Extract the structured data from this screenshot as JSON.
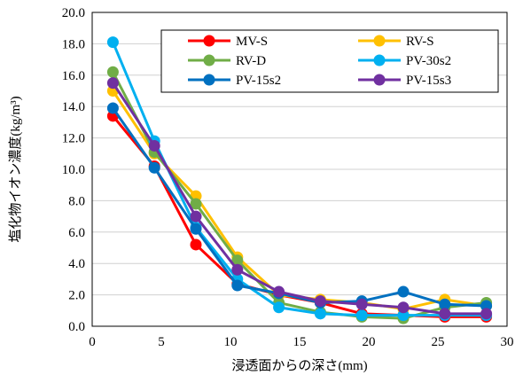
{
  "chart_data": {
    "type": "line",
    "title": "",
    "xlabel": "浸透面からの深さ(mm)",
    "ylabel": "塩化物イオン濃度(kg/m³)",
    "xlim": [
      0,
      30
    ],
    "ylim": [
      0,
      20
    ],
    "xticks": [
      0,
      5,
      10,
      15,
      20,
      25,
      30
    ],
    "yticks": [
      "0.0",
      "2.0",
      "4.0",
      "6.0",
      "8.0",
      "10.0",
      "12.0",
      "14.0",
      "16.0",
      "18.0",
      "20.0"
    ],
    "grid": "horizontal",
    "legend_position": "top-right",
    "series": [
      {
        "name": "MV-S",
        "color": "#ff0000",
        "x": [
          1.5,
          4.5,
          7.5,
          10.5,
          13.5,
          16.5,
          19.5,
          22.5,
          25.5,
          28.5
        ],
        "y": [
          13.4,
          10.2,
          5.2,
          2.7,
          2.0,
          1.5,
          0.8,
          0.7,
          0.6,
          0.6
        ]
      },
      {
        "name": "RV-S",
        "color": "#ffc000",
        "x": [
          1.5,
          4.5,
          7.5,
          10.5,
          13.5,
          16.5,
          19.5,
          22.5,
          25.5,
          28.5
        ],
        "y": [
          15.0,
          11.0,
          8.3,
          4.4,
          2.0,
          1.7,
          1.5,
          1.1,
          1.7,
          1.3
        ]
      },
      {
        "name": "RV-D",
        "color": "#70ad47",
        "x": [
          1.5,
          4.5,
          7.5,
          10.5,
          13.5,
          16.5,
          19.5,
          22.5,
          25.5,
          28.5
        ],
        "y": [
          16.2,
          11.1,
          7.8,
          4.2,
          1.5,
          0.9,
          0.6,
          0.5,
          1.2,
          1.5
        ]
      },
      {
        "name": "PV-30s2",
        "color": "#00b0f0",
        "x": [
          1.5,
          4.5,
          7.5,
          10.5,
          13.5,
          16.5,
          19.5,
          22.5,
          25.5,
          28.5
        ],
        "y": [
          18.1,
          11.8,
          6.3,
          3.0,
          1.2,
          0.8,
          0.7,
          0.7,
          0.7,
          0.7
        ]
      },
      {
        "name": "PV-15s2",
        "color": "#0070c0",
        "x": [
          1.5,
          4.5,
          7.5,
          10.5,
          13.5,
          16.5,
          19.5,
          22.5,
          25.5,
          28.5
        ],
        "y": [
          13.9,
          10.1,
          6.2,
          2.6,
          2.1,
          1.5,
          1.6,
          2.2,
          1.4,
          1.3
        ]
      },
      {
        "name": "PV-15s3",
        "color": "#7030a0",
        "x": [
          1.5,
          4.5,
          7.5,
          10.5,
          13.5,
          16.5,
          19.5,
          22.5,
          25.5,
          28.5
        ],
        "y": [
          15.5,
          11.5,
          7.0,
          3.6,
          2.2,
          1.6,
          1.4,
          1.2,
          0.8,
          0.8
        ]
      }
    ]
  }
}
